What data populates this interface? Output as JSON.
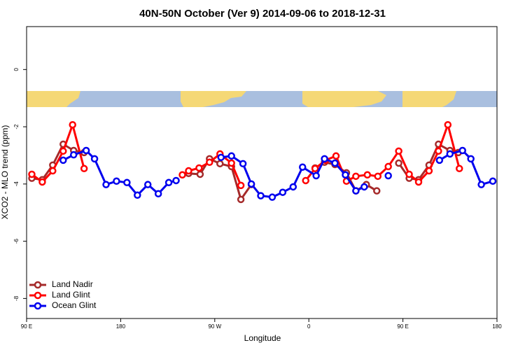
{
  "chart_data": {
    "type": "line",
    "title": "40N-50N October (Ver 9)   2014-09-06 to 2018-12-31",
    "x_label": "Longitude",
    "y_label": "XCO2 - MLO trend (ppm)",
    "xlim": [
      90,
      540
    ],
    "ylim": [
      -8.7,
      1.5
    ],
    "xticks": [
      {
        "value": 90,
        "label": "90 E"
      },
      {
        "value": 180,
        "label": "180"
      },
      {
        "value": 270,
        "label": "90 W"
      },
      {
        "value": 360,
        "label": "0"
      },
      {
        "value": 450,
        "label": "90 E"
      },
      {
        "value": 540,
        "label": "180"
      }
    ],
    "yticks": [
      0,
      -2,
      -4,
      -6,
      -8
    ],
    "legend": "bottom-left",
    "series": [
      {
        "name": "Land Nadir",
        "color": "#a52a2a",
        "x": [
          95,
          105,
          115,
          125,
          135,
          145,
          null,
          245,
          256,
          265,
          275,
          286,
          295,
          305,
          null,
          366,
          375,
          385,
          396,
          405,
          415,
          425,
          null,
          446,
          456,
          465,
          475,
          484,
          495,
          503
        ],
        "values": [
          -3.8,
          -3.85,
          -3.34,
          -2.61,
          -2.83,
          -2.9,
          null,
          -3.63,
          -3.66,
          -3.12,
          -3.29,
          -3.39,
          -4.54,
          -4.02,
          null,
          -3.44,
          -3.24,
          -3.32,
          -3.61,
          -4.24,
          -4.02,
          -4.24,
          null,
          -3.27,
          -3.8,
          -3.85,
          -3.34,
          -2.61,
          -2.83,
          -2.9
        ]
      },
      {
        "name": "Land Glint",
        "color": "#ff0000",
        "x": [
          95,
          105,
          115,
          125,
          134,
          145,
          null,
          239,
          245,
          255,
          265,
          275,
          286,
          295,
          null,
          357,
          366,
          376,
          386,
          396,
          405,
          416,
          426,
          436,
          446,
          456,
          465,
          475,
          484,
          493,
          504
        ],
        "values": [
          -3.66,
          -3.93,
          -3.54,
          -2.85,
          -1.93,
          -3.46,
          null,
          -3.68,
          -3.54,
          -3.44,
          -3.24,
          -2.95,
          -3.27,
          -4.05,
          null,
          -3.88,
          -3.46,
          -3.17,
          -3.02,
          -3.9,
          -3.73,
          -3.68,
          -3.73,
          -3.39,
          -2.85,
          -3.66,
          -3.93,
          -3.54,
          -2.85,
          -1.93,
          -3.46
        ]
      },
      {
        "name": "Ocean Glint",
        "color": "#0000ee",
        "x": [
          125,
          135,
          147,
          155,
          166,
          176,
          186,
          196,
          206,
          216,
          226,
          233,
          null,
          276,
          286,
          297,
          305,
          314,
          325,
          335,
          345,
          354,
          367,
          375,
          385,
          395,
          405,
          413,
          null,
          436,
          null,
          485,
          495,
          507,
          515,
          525,
          536
        ],
        "values": [
          -3.17,
          -2.98,
          -2.83,
          -3.12,
          -4.02,
          -3.9,
          -3.95,
          -4.39,
          -4.02,
          -4.34,
          -3.95,
          -3.88,
          null,
          -3.07,
          -3.02,
          -3.29,
          -4.0,
          -4.41,
          -4.46,
          -4.29,
          -4.1,
          -3.41,
          -3.71,
          -3.12,
          -3.27,
          -3.68,
          -4.24,
          -4.1,
          null,
          -3.71,
          null,
          -3.17,
          -2.95,
          -2.83,
          -3.12,
          -4.02,
          -3.9
        ]
      }
    ]
  }
}
